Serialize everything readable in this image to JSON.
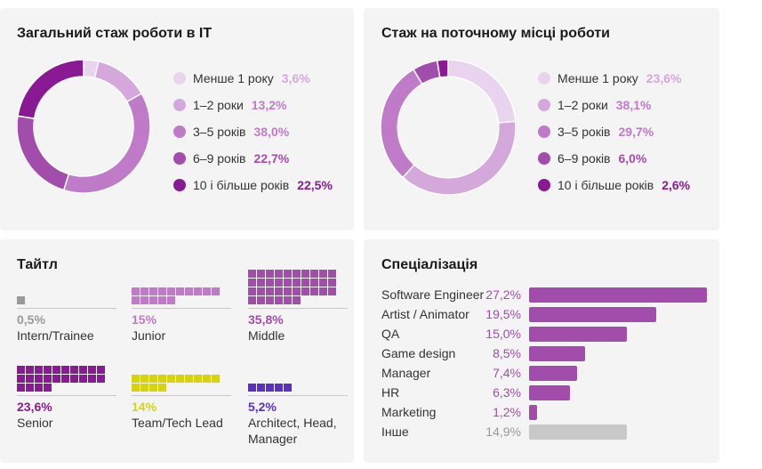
{
  "colors": {
    "c1": "#e8d4ee",
    "c2": "#d5a8dc",
    "c3": "#bf7bc8",
    "c4": "#a24dac",
    "c5": "#8a1a94",
    "gray": "#999999",
    "lightgray": "#c8c8c8",
    "yellow": "#d7d311",
    "blue": "#5a30c4"
  },
  "total_exp": {
    "title": "Загальний стаж роботи в IT",
    "items": [
      {
        "label": "Менше 1 року",
        "value": "3,6%"
      },
      {
        "label": "1–2 роки",
        "value": "13,2%"
      },
      {
        "label": "3–5 років",
        "value": "38,0%"
      },
      {
        "label": "6–9 років",
        "value": "22,7%"
      },
      {
        "label": "10 і більше років",
        "value": "22,5%"
      }
    ]
  },
  "current_exp": {
    "title": "Стаж на поточному місці роботи",
    "items": [
      {
        "label": "Менше 1 року",
        "value": "23,6%"
      },
      {
        "label": "1–2 роки",
        "value": "38,1%"
      },
      {
        "label": "3–5 років",
        "value": "29,7%"
      },
      {
        "label": "6–9 років",
        "value": "6,0%"
      },
      {
        "label": "10 і більше років",
        "value": "2,6%"
      }
    ]
  },
  "titles": {
    "title": "Тайтл",
    "items": [
      {
        "pct": "0,5%",
        "name": "Intern/Trainee",
        "squares": 1,
        "color": "#999999"
      },
      {
        "pct": "15%",
        "name": "Junior",
        "squares": 15,
        "color": "#bf7bc8"
      },
      {
        "pct": "35,8%",
        "name": "Middle",
        "squares": 36,
        "color": "#a24dac"
      },
      {
        "pct": "23,6%",
        "name": "Senior",
        "squares": 24,
        "color": "#8a1a94"
      },
      {
        "pct": "14%",
        "name": "Team/Tech Lead",
        "squares": 14,
        "color": "#d7d311"
      },
      {
        "pct": "5,2%",
        "name": "Architect, Head, Manager",
        "squares": 5,
        "color": "#5a30c4"
      }
    ]
  },
  "specialization": {
    "title": "Спеціалізація",
    "items": [
      {
        "label": "Software Engineer",
        "value": "27,2%"
      },
      {
        "label": "Artist / Animator",
        "value": "19,5%"
      },
      {
        "label": "QA",
        "value": "15,0%"
      },
      {
        "label": "Game design",
        "value": "8,5%"
      },
      {
        "label": "Manager",
        "value": "7,4%"
      },
      {
        "label": "HR",
        "value": "6,3%"
      },
      {
        "label": "Marketing",
        "value": "1,2%"
      },
      {
        "label": "Інше",
        "value": "14,9%"
      }
    ]
  },
  "chart_data": [
    {
      "type": "pie",
      "title": "Загальний стаж роботи в IT",
      "categories": [
        "Менше 1 року",
        "1–2 роки",
        "3–5 років",
        "6–9 років",
        "10 і більше років"
      ],
      "values": [
        3.6,
        13.2,
        38.0,
        22.7,
        22.5
      ]
    },
    {
      "type": "pie",
      "title": "Стаж на поточному місці роботи",
      "categories": [
        "Менше 1 року",
        "1–2 роки",
        "3–5 років",
        "6–9 років",
        "10 і більше років"
      ],
      "values": [
        23.6,
        38.1,
        29.7,
        6.0,
        2.6
      ]
    },
    {
      "type": "bar",
      "title": "Тайтл",
      "categories": [
        "Intern/Trainee",
        "Junior",
        "Middle",
        "Senior",
        "Team/Tech Lead",
        "Architect, Head, Manager"
      ],
      "values": [
        0.5,
        15,
        35.8,
        23.6,
        14,
        5.2
      ]
    },
    {
      "type": "bar",
      "title": "Спеціалізація",
      "categories": [
        "Software Engineer",
        "Artist / Animator",
        "QA",
        "Game design",
        "Manager",
        "HR",
        "Marketing",
        "Інше"
      ],
      "values": [
        27.2,
        19.5,
        15.0,
        8.5,
        7.4,
        6.3,
        1.2,
        14.9
      ],
      "xlim": [
        0,
        27.2
      ]
    }
  ]
}
